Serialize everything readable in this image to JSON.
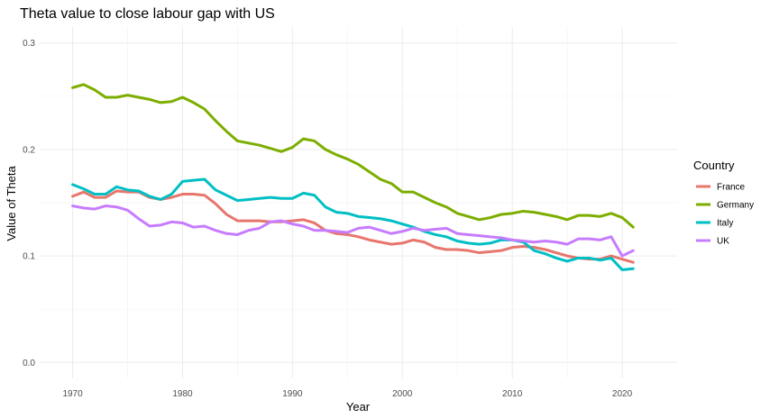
{
  "chart_data": {
    "type": "line",
    "title": "Theta value to close labour gap with US",
    "xlabel": "Year",
    "ylabel": "Value of Theta",
    "xlim": [
      1967,
      2025
    ],
    "ylim": [
      -0.015,
      0.315
    ],
    "x_ticks": [
      1970,
      1980,
      1990,
      2000,
      2010,
      2020
    ],
    "x_tick_labels": [
      "1970",
      "1980",
      "1990",
      "2000",
      "2010",
      "2020"
    ],
    "y_ticks": [
      0,
      0.1,
      0.2,
      0.3
    ],
    "y_tick_labels": [
      "0.0",
      "0.1",
      "0.2",
      "0.3"
    ],
    "grid": true,
    "legend": {
      "title": "Country",
      "position": "right"
    },
    "x": [
      1970,
      1971,
      1972,
      1973,
      1974,
      1975,
      1976,
      1977,
      1978,
      1979,
      1980,
      1981,
      1982,
      1983,
      1984,
      1985,
      1986,
      1987,
      1988,
      1989,
      1990,
      1991,
      1992,
      1993,
      1994,
      1995,
      1996,
      1997,
      1998,
      1999,
      2000,
      2001,
      2002,
      2003,
      2004,
      2005,
      2006,
      2007,
      2008,
      2009,
      2010,
      2011,
      2012,
      2013,
      2014,
      2015,
      2016,
      2017,
      2018,
      2019,
      2020,
      2021
    ],
    "series": [
      {
        "name": "France",
        "color": "#e7766d",
        "values": [
          0.156,
          0.16,
          0.155,
          0.155,
          0.161,
          0.16,
          0.16,
          0.155,
          0.153,
          0.155,
          0.158,
          0.158,
          0.157,
          0.149,
          0.139,
          0.133,
          0.133,
          0.133,
          0.132,
          0.132,
          0.133,
          0.134,
          0.131,
          0.124,
          0.121,
          0.12,
          0.118,
          0.115,
          0.113,
          0.111,
          0.112,
          0.115,
          0.113,
          0.108,
          0.106,
          0.106,
          0.105,
          0.103,
          0.104,
          0.105,
          0.108,
          0.109,
          0.108,
          0.106,
          0.103,
          0.1,
          0.098,
          0.097,
          0.097,
          0.1,
          0.097,
          0.094
        ]
      },
      {
        "name": "Germany",
        "color": "#7cae00",
        "values": [
          0.258,
          0.261,
          0.256,
          0.249,
          0.249,
          0.251,
          0.249,
          0.247,
          0.244,
          0.245,
          0.249,
          0.244,
          0.238,
          0.227,
          0.217,
          0.208,
          0.206,
          0.204,
          0.201,
          0.198,
          0.202,
          0.21,
          0.208,
          0.2,
          0.195,
          0.191,
          0.186,
          0.179,
          0.172,
          0.168,
          0.16,
          0.16,
          0.155,
          0.15,
          0.146,
          0.14,
          0.137,
          0.134,
          0.136,
          0.139,
          0.14,
          0.142,
          0.141,
          0.139,
          0.137,
          0.134,
          0.138,
          0.138,
          0.137,
          0.14,
          0.136,
          0.127
        ]
      },
      {
        "name": "Italy",
        "color": "#00bfc4",
        "values": [
          0.167,
          0.163,
          0.158,
          0.158,
          0.165,
          0.162,
          0.161,
          0.156,
          0.153,
          0.158,
          0.17,
          0.171,
          0.172,
          0.162,
          0.157,
          0.152,
          0.153,
          0.154,
          0.155,
          0.154,
          0.154,
          0.159,
          0.157,
          0.146,
          0.141,
          0.14,
          0.137,
          0.136,
          0.135,
          0.133,
          0.13,
          0.127,
          0.123,
          0.12,
          0.118,
          0.114,
          0.112,
          0.111,
          0.112,
          0.115,
          0.115,
          0.113,
          0.105,
          0.102,
          0.098,
          0.095,
          0.098,
          0.098,
          0.096,
          0.098,
          0.087,
          0.088
        ]
      },
      {
        "name": "UK",
        "color": "#c77cff",
        "values": [
          0.147,
          0.145,
          0.144,
          0.147,
          0.146,
          0.143,
          0.135,
          0.128,
          0.129,
          0.132,
          0.131,
          0.127,
          0.128,
          0.124,
          0.121,
          0.12,
          0.124,
          0.126,
          0.132,
          0.133,
          0.13,
          0.128,
          0.124,
          0.124,
          0.123,
          0.122,
          0.126,
          0.127,
          0.124,
          0.121,
          0.123,
          0.126,
          0.124,
          0.125,
          0.126,
          0.121,
          0.12,
          0.119,
          0.118,
          0.117,
          0.115,
          0.114,
          0.113,
          0.114,
          0.113,
          0.111,
          0.116,
          0.116,
          0.115,
          0.118,
          0.1,
          0.105
        ]
      }
    ]
  }
}
